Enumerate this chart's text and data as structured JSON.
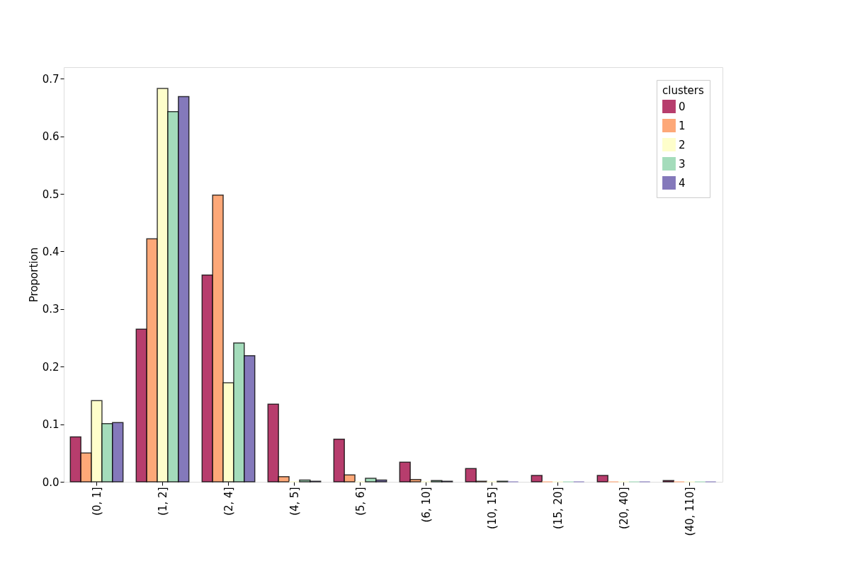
{
  "chart_data": {
    "type": "bar",
    "ylabel": "Proportion",
    "legend_title": "clusters",
    "legend": "top right",
    "grid": false,
    "categories": [
      "(0, 1]",
      "(1, 2]",
      "(2, 4]",
      "(4, 5]",
      "(5, 6]",
      "(6, 10]",
      "(10, 15]",
      "(15, 20]",
      "(20, 40]",
      "(40, 110]"
    ],
    "ylim": [
      0,
      0.72
    ],
    "yticks": [
      {
        "value": 0,
        "label": "0.0"
      },
      0.1,
      0.2,
      0.3,
      0.4,
      0.5,
      0.6,
      0.7
    ],
    "series": [
      {
        "name": "0",
        "color": "#b73d6d",
        "values": [
          0.078,
          0.265,
          0.359,
          0.135,
          0.074,
          0.034,
          0.023,
          0.011,
          0.011,
          0.002
        ]
      },
      {
        "name": "1",
        "color": "#fda878",
        "values": [
          0.05,
          0.422,
          0.498,
          0.009,
          0.012,
          0.004,
          0.001,
          0,
          0,
          0
        ]
      },
      {
        "name": "2",
        "color": "#fefecb",
        "values": [
          0.141,
          0.683,
          0.172,
          0,
          0,
          0,
          0,
          0,
          0,
          0
        ]
      },
      {
        "name": "3",
        "color": "#a4dcbb",
        "values": [
          0.101,
          0.643,
          0.241,
          0.003,
          0.006,
          0.002,
          0.001,
          0,
          0,
          0
        ]
      },
      {
        "name": "4",
        "color": "#8479bb",
        "values": [
          0.103,
          0.669,
          0.219,
          0.001,
          0.003,
          0.001,
          0,
          0,
          0,
          0
        ]
      }
    ]
  }
}
